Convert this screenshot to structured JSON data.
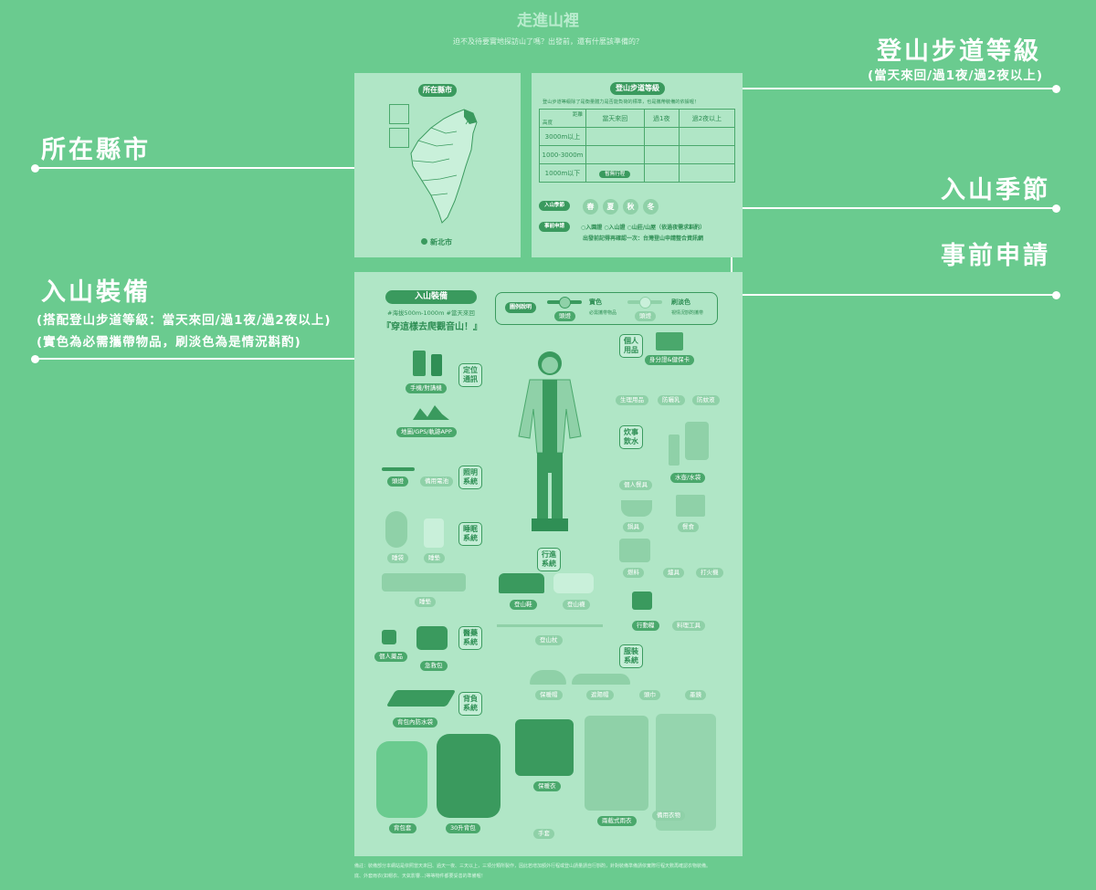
{
  "header": {
    "title": "走進山裡",
    "subtitle": "迫不及待要實地探訪山了嗎？出發前，還有什麼該準備的？"
  },
  "callouts": {
    "trail_grade": {
      "title": "登山步道等級",
      "sub": "(當天來回/過1夜/過2夜以上)"
    },
    "county": {
      "title": "所在縣市"
    },
    "season": {
      "title": "入山季節"
    },
    "permit": {
      "title": "事前申請"
    },
    "gear": {
      "title": "入山裝備",
      "sub1": "(搭配登山步道等級：當天來回/過1夜/過2夜以上)",
      "sub2": "(實色為必需攜帶物品，刷淡色為是情況斟酌)"
    }
  },
  "map_panel": {
    "label": "所在縣市",
    "county": "新北市"
  },
  "grade_panel": {
    "label": "登山步道等級",
    "desc": "登山步道等級除了是衡量體力是否能負荷的標準，也是攜帶裝備的依據喔！",
    "corner_top": "距離",
    "corner_bottom": "高度",
    "columns": [
      "當天來回",
      "過1夜",
      "過2夜以上"
    ],
    "rows": [
      "3000m以上",
      "1000-3000m",
      "1000m以下"
    ],
    "highlight": "暫無行程",
    "season_label": "入山季節",
    "seasons": [
      "春",
      "夏",
      "秋",
      "冬"
    ],
    "permit_label": "事前申請",
    "permit_options": "○入園證 ○入山證 ○山莊/山屋（依過夜需求斟酌）",
    "permit_note": "出發前記得再確認一次：台灣登山申請整合資訊網"
  },
  "gear_panel": {
    "label": "入山裝備",
    "hashtags": "#海拔500m-1000m #當天來回",
    "headline": "『穿這樣去爬觀音山！』",
    "legend_title": "圖例說明",
    "legend_solid": "實色",
    "legend_solid_desc": "必需攜帶物品",
    "legend_light": "刷淡色",
    "legend_light_desc": "視情況斟酌攜帶",
    "legend_item": "頭燈",
    "categories": [
      "定位通訊",
      "照明系統",
      "睡眠系統",
      "醫藥系統",
      "背負系統",
      "個人用品",
      "炊事飲水",
      "行進系統",
      "服裝系統"
    ],
    "items": {
      "phone": "手機/對講機",
      "map": "地圖/GPS/軌跡APP",
      "headlamp": "頭燈",
      "battery": "備用電池",
      "sleeping_bag": "睡袋",
      "liner": "睡墊",
      "mat": "睡墊",
      "personal_meds": "個人藥品",
      "first_aid": "急救包",
      "pack_liner": "背包內防水袋",
      "rain_cover": "背包套",
      "backpack": "30升背包",
      "id_card": "身分證&健保卡",
      "hygiene": "生理用品",
      "sunscreen": "防曬乳",
      "insect": "防蚊液",
      "utensils": "個人餐具",
      "water": "水壺/水袋",
      "pot": "鍋具",
      "food": "餐食",
      "fuel": "燃料",
      "stove": "爐具",
      "lighter": "打火機",
      "snack": "行動糧",
      "tools": "料理工具",
      "boots": "登山鞋",
      "gaiters": "登山襪",
      "poles": "登山杖",
      "beanie": "保暖帽",
      "sun_hat": "遮陽帽",
      "towel": "頭巾",
      "glasses": "墨鏡",
      "jacket": "保暖衣",
      "rain_suit": "兩截式雨衣",
      "gloves": "手套",
      "spare": "備用衣物"
    }
  },
  "footer": {
    "note1": "備註：裝備部分本網站是依照當天來回、過天一夜、三天以上，三項分類所製作，因此若增加額外行程或登山請量請自行斟酌，針對裝備準備請依實際行程天數再確認衣物裝備。",
    "note2": "底、外套雨衣(如帽衣、天氣影響...)等等物件都要妥善的準備喔！"
  },
  "colors": {
    "background": "#6acb8f",
    "panel": "#b0e6c6",
    "dark": "#2f8f55",
    "accent": "#3a9a5e"
  }
}
